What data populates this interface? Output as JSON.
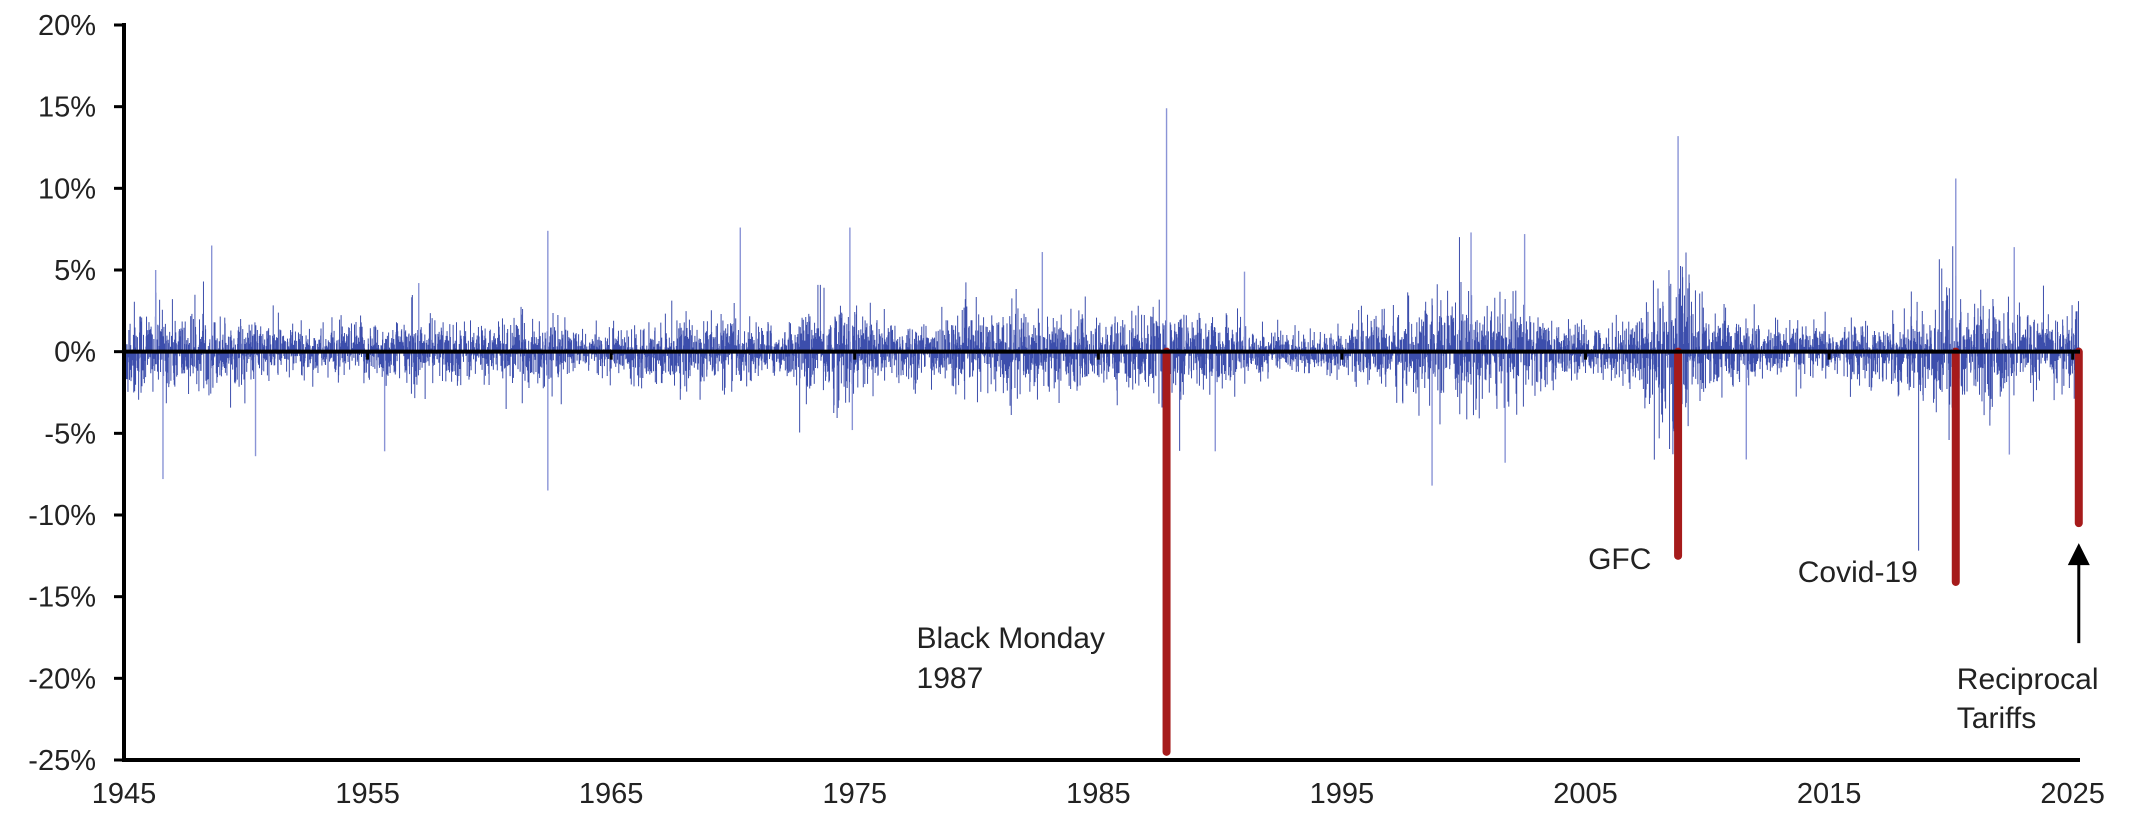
{
  "chart_data": {
    "type": "bar",
    "title": "",
    "xlabel": "",
    "ylabel": "",
    "xlim": [
      1945,
      2025.3
    ],
    "ylim": [
      -0.25,
      0.2
    ],
    "y_ticks": [
      {
        "value": 0.2,
        "label": "20%"
      },
      {
        "value": 0.15,
        "label": "15%"
      },
      {
        "value": 0.1,
        "label": "10%"
      },
      {
        "value": 0.05,
        "label": "5%"
      },
      {
        "value": 0.0,
        "label": "0%"
      },
      {
        "value": -0.05,
        "label": "-5%"
      },
      {
        "value": -0.1,
        "label": "-10%"
      },
      {
        "value": -0.15,
        "label": "-15%"
      },
      {
        "value": -0.2,
        "label": "-20%"
      },
      {
        "value": -0.25,
        "label": "-25%"
      }
    ],
    "x_ticks": [
      {
        "value": 1945,
        "label": "1945"
      },
      {
        "value": 1955,
        "label": "1955"
      },
      {
        "value": 1965,
        "label": "1965"
      },
      {
        "value": 1975,
        "label": "1975"
      },
      {
        "value": 1985,
        "label": "1985"
      },
      {
        "value": 1995,
        "label": "1995"
      },
      {
        "value": 2005,
        "label": "2005"
      },
      {
        "value": 2015,
        "label": "2015"
      },
      {
        "value": 2025,
        "label": "2025"
      }
    ],
    "colors": {
      "returns": "#1a2f9e",
      "highlight": "#a61b1b",
      "axis": "#000000"
    },
    "returns_series": {
      "base_volatility": [
        [
          1945,
          0.015
        ],
        [
          1947,
          0.012
        ],
        [
          1950,
          0.009
        ],
        [
          1953,
          0.007
        ],
        [
          1955,
          0.009
        ],
        [
          1957,
          0.01
        ],
        [
          1960,
          0.008
        ],
        [
          1962,
          0.011
        ],
        [
          1964,
          0.005
        ],
        [
          1966,
          0.008
        ],
        [
          1970,
          0.01
        ],
        [
          1972,
          0.007
        ],
        [
          1974,
          0.016
        ],
        [
          1976,
          0.01
        ],
        [
          1978,
          0.009
        ],
        [
          1980,
          0.011
        ],
        [
          1982,
          0.013
        ],
        [
          1985,
          0.009
        ],
        [
          1987,
          0.012
        ],
        [
          1988,
          0.013
        ],
        [
          1990,
          0.01
        ],
        [
          1993,
          0.006
        ],
        [
          1995,
          0.006
        ],
        [
          1997,
          0.012
        ],
        [
          1999,
          0.014
        ],
        [
          2002,
          0.016
        ],
        [
          2004,
          0.008
        ],
        [
          2006,
          0.007
        ],
        [
          2007,
          0.011
        ],
        [
          2008.8,
          0.03
        ],
        [
          2009.5,
          0.018
        ],
        [
          2010,
          0.012
        ],
        [
          2012,
          0.009
        ],
        [
          2014,
          0.007
        ],
        [
          2016,
          0.008
        ],
        [
          2018,
          0.01
        ],
        [
          2020.2,
          0.024
        ],
        [
          2020.8,
          0.013
        ],
        [
          2022,
          0.015
        ],
        [
          2023,
          0.01
        ],
        [
          2025,
          0.012
        ],
        [
          2025.3,
          0.015
        ]
      ],
      "notable_days": [
        {
          "date": 1946.3,
          "value": 0.05
        },
        {
          "date": 1946.6,
          "value": -0.078
        },
        {
          "date": 1948.6,
          "value": 0.065
        },
        {
          "date": 1950.4,
          "value": -0.064
        },
        {
          "date": 1955.7,
          "value": -0.061
        },
        {
          "date": 1957.1,
          "value": 0.042
        },
        {
          "date": 1962.4,
          "value": 0.074
        },
        {
          "date": 1962.4,
          "value": -0.085
        },
        {
          "date": 1970.3,
          "value": 0.076
        },
        {
          "date": 1974.8,
          "value": 0.076
        },
        {
          "date": 1974.9,
          "value": -0.048
        },
        {
          "date": 1982.7,
          "value": 0.061
        },
        {
          "date": 1987.8,
          "value": 0.149
        },
        {
          "date": 1989.8,
          "value": -0.061
        },
        {
          "date": 1991.0,
          "value": 0.049
        },
        {
          "date": 1998.7,
          "value": -0.082
        },
        {
          "date": 2000.3,
          "value": 0.073
        },
        {
          "date": 2001.7,
          "value": -0.068
        },
        {
          "date": 2002.5,
          "value": 0.072
        },
        {
          "date": 2008.8,
          "value": 0.132
        },
        {
          "date": 2008.85,
          "value": -0.093
        },
        {
          "date": 2011.6,
          "value": -0.066
        },
        {
          "date": 2020.2,
          "value": 0.106
        },
        {
          "date": 2020.25,
          "value": -0.12
        },
        {
          "date": 2022.4,
          "value": -0.063
        },
        {
          "date": 2022.6,
          "value": 0.064
        }
      ]
    },
    "highlighted_declines": [
      {
        "name": "Black Monday 1987",
        "date": 1987.8,
        "value": -0.245
      },
      {
        "name": "GFC",
        "date": 2008.8,
        "value": -0.125
      },
      {
        "name": "Covid-19",
        "date": 2020.2,
        "value": -0.141
      },
      {
        "name": "Reciprocal Tariffs",
        "date": 2025.25,
        "value": -0.105
      }
    ],
    "annotations": [
      {
        "line1": "Black Monday",
        "line2": "1987",
        "target": "Black Monday 1987"
      },
      {
        "line1": "GFC",
        "line2": "",
        "target": "GFC"
      },
      {
        "line1": "Covid-19",
        "line2": "",
        "target": "Covid-19"
      },
      {
        "line1": "Reciprocal",
        "line2": "Tariffs",
        "target": "Reciprocal Tariffs",
        "arrow": true
      }
    ]
  }
}
